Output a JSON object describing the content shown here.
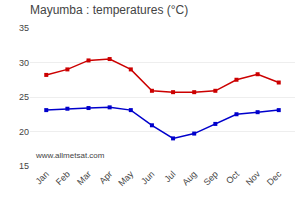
{
  "chart_data": {
    "type": "line",
    "title": "Mayumba : temperatures (°C)",
    "categories": [
      "Jan",
      "Feb",
      "Mar",
      "Apr",
      "May",
      "Jun",
      "Jul",
      "Aug",
      "Sep",
      "Oct",
      "Nov",
      "Dec"
    ],
    "series": [
      {
        "color": "#cc0000",
        "values": [
          28.2,
          29.0,
          30.3,
          30.5,
          29.0,
          25.9,
          25.7,
          25.7,
          25.9,
          27.5,
          28.3,
          27.1
        ]
      },
      {
        "color": "#0000cc",
        "values": [
          23.1,
          23.3,
          23.4,
          23.5,
          23.1,
          20.9,
          19.0,
          19.7,
          21.1,
          22.5,
          22.8,
          23.1
        ]
      }
    ],
    "ylim": [
      15,
      35
    ],
    "yticks": [
      15,
      20,
      25,
      30,
      35
    ],
    "grid": true,
    "marker": "square",
    "annotation": "www.allmetsat.com"
  }
}
